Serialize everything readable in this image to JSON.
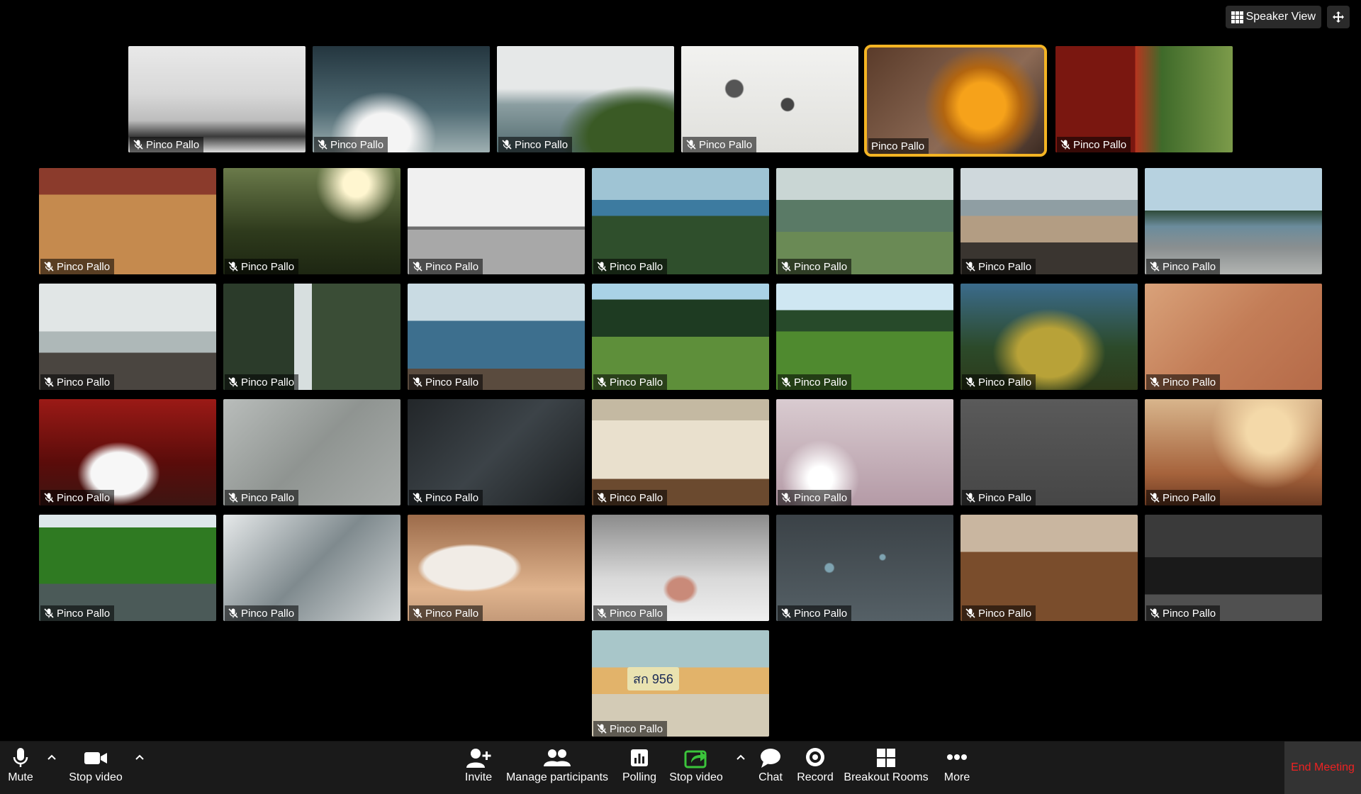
{
  "top": {
    "speaker_view_label": "Speaker View",
    "view_icon": "grid-icon",
    "fullscreen_icon": "expand-arrows-icon"
  },
  "participant_name": "Pinco Pallo",
  "tiles": [
    {
      "name": "Pinco Pallo",
      "muted": true,
      "active": false,
      "scene": "turntable"
    },
    {
      "name": "Pinco Pallo",
      "muted": true,
      "active": false,
      "scene": "clouds"
    },
    {
      "name": "Pinco Pallo",
      "muted": true,
      "active": false,
      "scene": "coast-flowers"
    },
    {
      "name": "Pinco Pallo",
      "muted": true,
      "active": false,
      "scene": "parts-flatlay"
    },
    {
      "name": "Pinco Pallo",
      "muted": false,
      "active": true,
      "scene": "orange-spiky-plant"
    },
    {
      "name": "Pinco Pallo",
      "muted": true,
      "active": false,
      "scene": "red-barrel"
    },
    {
      "name": "Pinco Pallo",
      "muted": true,
      "active": false,
      "scene": "table-meeting"
    },
    {
      "name": "Pinco Pallo",
      "muted": true,
      "active": false,
      "scene": "grass-sun"
    },
    {
      "name": "Pinco Pallo",
      "muted": true,
      "active": false,
      "scene": "wall-bench"
    },
    {
      "name": "Pinco Pallo",
      "muted": true,
      "active": false,
      "scene": "forest-lake"
    },
    {
      "name": "Pinco Pallo",
      "muted": true,
      "active": false,
      "scene": "valley-river"
    },
    {
      "name": "Pinco Pallo",
      "muted": true,
      "active": false,
      "scene": "beach-rocks"
    },
    {
      "name": "Pinco Pallo",
      "muted": true,
      "active": false,
      "scene": "pebble-beach"
    },
    {
      "name": "Pinco Pallo",
      "muted": true,
      "active": false,
      "scene": "rocky-shore"
    },
    {
      "name": "Pinco Pallo",
      "muted": true,
      "active": false,
      "scene": "waterfall"
    },
    {
      "name": "Pinco Pallo",
      "muted": true,
      "active": false,
      "scene": "sea-rocks"
    },
    {
      "name": "Pinco Pallo",
      "muted": true,
      "active": false,
      "scene": "forest-path"
    },
    {
      "name": "Pinco Pallo",
      "muted": true,
      "active": false,
      "scene": "grass-field"
    },
    {
      "name": "Pinco Pallo",
      "muted": true,
      "active": false,
      "scene": "mossy-log"
    },
    {
      "name": "Pinco Pallo",
      "muted": true,
      "active": false,
      "scene": "desk-flatlay"
    },
    {
      "name": "Pinco Pallo",
      "muted": true,
      "active": false,
      "scene": "white-heels"
    },
    {
      "name": "Pinco Pallo",
      "muted": true,
      "active": false,
      "scene": "man-walking"
    },
    {
      "name": "Pinco Pallo",
      "muted": true,
      "active": false,
      "scene": "forks"
    },
    {
      "name": "Pinco Pallo",
      "muted": true,
      "active": false,
      "scene": "open-book"
    },
    {
      "name": "Pinco Pallo",
      "muted": true,
      "active": false,
      "scene": "branches"
    },
    {
      "name": "Pinco Pallo",
      "muted": true,
      "active": false,
      "scene": "gadgets-flatlay"
    },
    {
      "name": "Pinco Pallo",
      "muted": true,
      "active": false,
      "scene": "man-sunset"
    },
    {
      "name": "Pinco Pallo",
      "muted": true,
      "active": false,
      "scene": "green-river"
    },
    {
      "name": "Pinco Pallo",
      "muted": true,
      "active": false,
      "scene": "snowy-mountains"
    },
    {
      "name": "Pinco Pallo",
      "muted": true,
      "active": false,
      "scene": "mug"
    },
    {
      "name": "Pinco Pallo",
      "muted": true,
      "active": false,
      "scene": "cat-nose"
    },
    {
      "name": "Pinco Pallo",
      "muted": true,
      "active": false,
      "scene": "water-drops"
    },
    {
      "name": "Pinco Pallo",
      "muted": true,
      "active": false,
      "scene": "cafe"
    },
    {
      "name": "Pinco Pallo",
      "muted": true,
      "active": false,
      "scene": "city-bridge-night"
    },
    {
      "name": "Pinco Pallo",
      "muted": true,
      "active": false,
      "scene": "tuktuk"
    }
  ],
  "plate_text": "สก 956",
  "toolbar": {
    "mute": "Mute",
    "stop_video_left": "Stop video",
    "invite": "Invite",
    "manage": "Manage participants",
    "polling": "Polling",
    "stop_video_share": "Stop video",
    "chat": "Chat",
    "record": "Record",
    "breakout": "Breakout Rooms",
    "more": "More",
    "end": "End Meeting"
  },
  "colors": {
    "active_border": "#f4b423",
    "end_text": "#e22222",
    "share_green": "#3bc43b"
  }
}
